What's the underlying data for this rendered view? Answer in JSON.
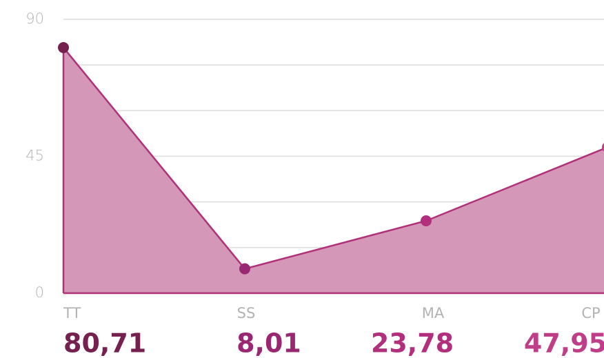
{
  "chart_data": {
    "type": "area",
    "categories": [
      "TT",
      "SS",
      "MA",
      "CP"
    ],
    "values": [
      80.71,
      8.01,
      23.78,
      47.95
    ],
    "value_labels": [
      "80,71",
      "8,01",
      "23,78",
      "47,95"
    ],
    "colors": [
      "#76204f",
      "#9a2772",
      "#b12f7c",
      "#bf3e88"
    ],
    "fill": "#d597b8",
    "line_color": "#b0307a",
    "ylim": [
      0,
      90
    ],
    "yticks": [
      0,
      45,
      90
    ],
    "minor_yticks": [
      15,
      30,
      60,
      75
    ],
    "grid": true
  }
}
